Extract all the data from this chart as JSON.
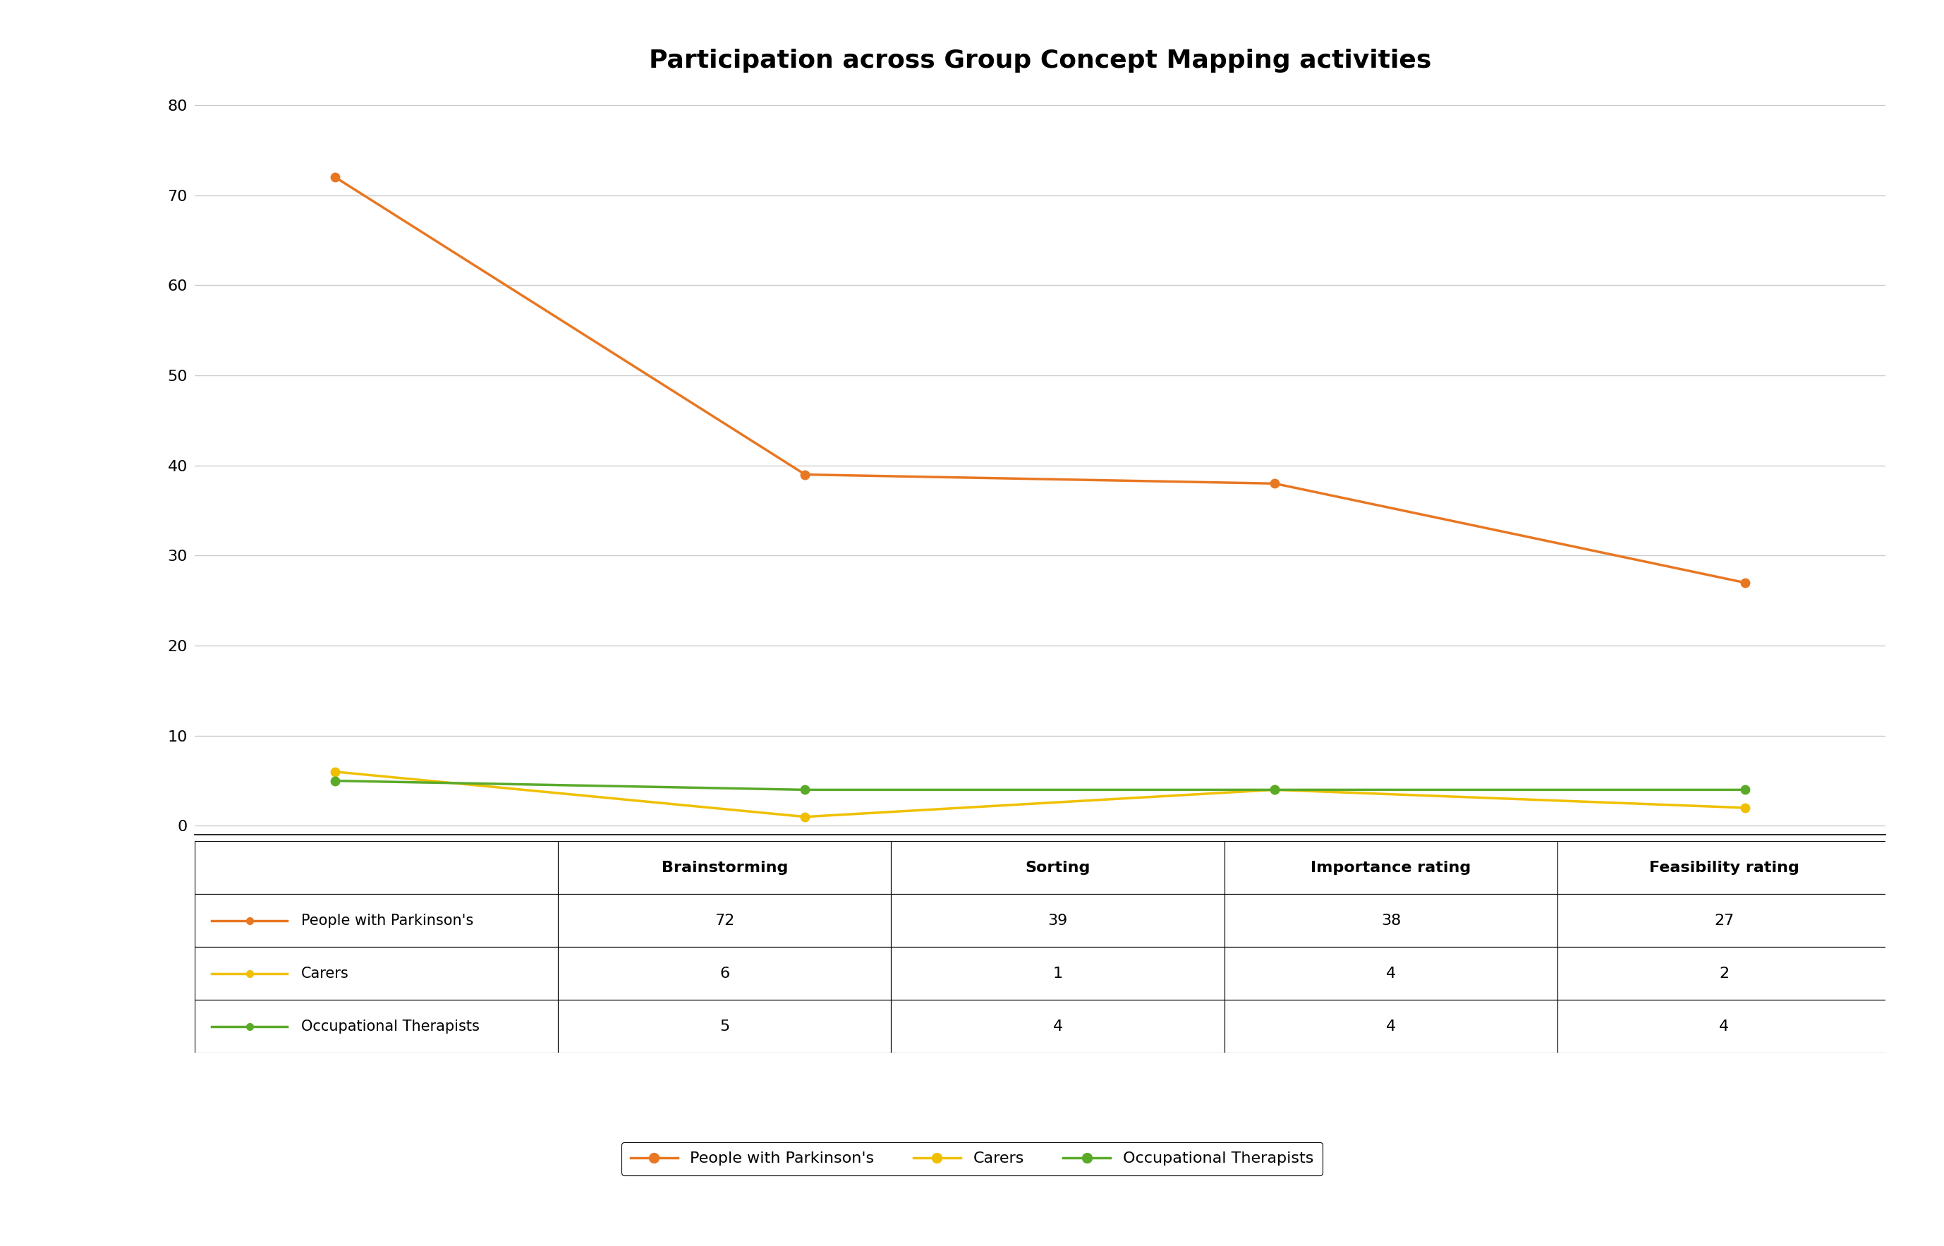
{
  "title": "Participation across Group Concept Mapping activities",
  "categories": [
    "Brainstorming",
    "Sorting",
    "Importance rating",
    "Feasibility rating"
  ],
  "series": [
    {
      "label": "People with Parkinson's",
      "values": [
        72,
        39,
        38,
        27
      ],
      "color": "#E87722",
      "marker": "o"
    },
    {
      "label": "Carers",
      "values": [
        6,
        1,
        4,
        2
      ],
      "color": "#F0C000",
      "marker": "o"
    },
    {
      "label": "Occupational Therapists",
      "values": [
        5,
        4,
        4,
        4
      ],
      "color": "#5AAA2A",
      "marker": "o"
    }
  ],
  "ylim": [
    -1,
    82
  ],
  "yticks": [
    0,
    10,
    20,
    30,
    40,
    50,
    60,
    70,
    80
  ],
  "table_rows": [
    [
      "People with Parkinson's",
      "72",
      "39",
      "38",
      "27"
    ],
    [
      "Carers",
      "6",
      "1",
      "4",
      "2"
    ],
    [
      "Occupational Therapists",
      "5",
      "4",
      "4",
      "4"
    ]
  ],
  "table_header": [
    "",
    "Brainstorming",
    "Sorting",
    "Importance rating",
    "Feasibility rating"
  ],
  "title_fontsize": 26,
  "tick_fontsize": 16,
  "table_fontsize": 15,
  "legend_fontsize": 16,
  "line_width": 2.5,
  "marker_size": 9,
  "grid_color": "#cccccc"
}
